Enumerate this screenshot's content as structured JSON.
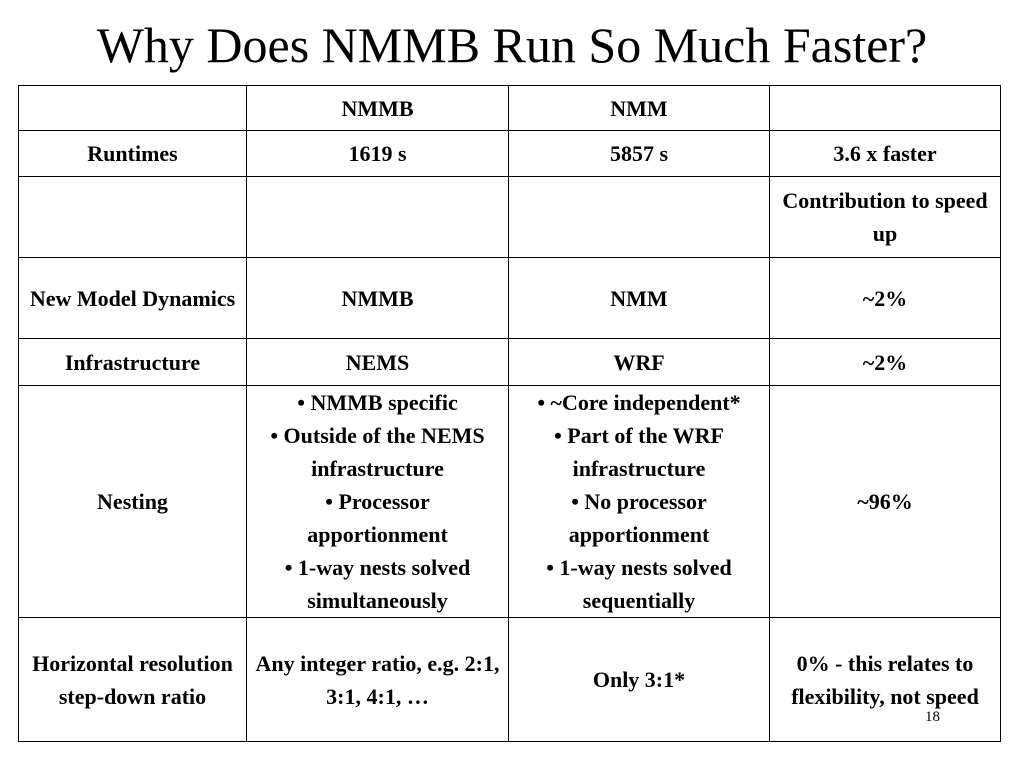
{
  "slide": {
    "title": "Why Does NMMB Run So Much Faster?",
    "number": "18"
  },
  "table": {
    "header": [
      "",
      "NMMB",
      "NMM",
      ""
    ],
    "rows": [
      {
        "label": "Runtimes",
        "nmmb": "1619 s",
        "nmm": "5857 s",
        "contribution": "3.6 x faster"
      },
      {
        "label": "",
        "nmmb": "",
        "nmm": "",
        "contribution": "Contribution to speed up"
      },
      {
        "label": "New Model Dynamics",
        "nmmb": "NMMB",
        "nmm": "NMM",
        "contribution": "~2%"
      },
      {
        "label": "Infrastructure",
        "nmmb": "NEMS",
        "nmm": "WRF",
        "contribution": "~2%"
      },
      {
        "label": "Nesting",
        "nmmb_items": [
          "• NMMB specific",
          "• Outside of the NEMS infrastructure",
          "• Processor apportionment",
          "• 1-way nests solved simultaneously"
        ],
        "nmm_items": [
          "• ~Core independent*",
          "• Part of the WRF infrastructure",
          "• No processor apportionment",
          "• 1-way nests solved sequentially"
        ],
        "contribution": "~96%"
      },
      {
        "label": "Horizontal resolution step-down ratio",
        "nmmb": "Any integer ratio, e.g. 2:1, 3:1, 4:1, …",
        "nmm": "Only 3:1*",
        "contribution": "0% - this relates to flexibility, not speed"
      }
    ]
  }
}
